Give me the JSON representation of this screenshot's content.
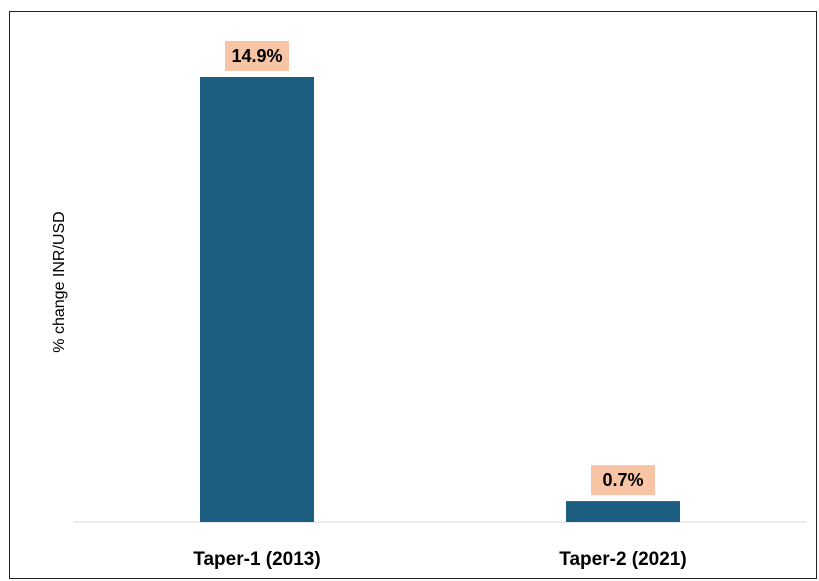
{
  "chart_data": {
    "type": "bar",
    "categories": [
      "Taper-1 (2013)",
      "Taper-2 (2021)"
    ],
    "values": [
      14.9,
      0.7
    ],
    "data_labels": [
      "14.9%",
      "0.7%"
    ],
    "title": "",
    "xlabel": "",
    "ylabel": "% change INR/USD",
    "ylim": [
      0,
      14.9
    ],
    "grid": false,
    "legend": "none"
  },
  "colors": {
    "bar": "#1b5e80",
    "label_bg": "#f7c5a6",
    "axis": "#d9d9d9",
    "frame": "#222222"
  }
}
